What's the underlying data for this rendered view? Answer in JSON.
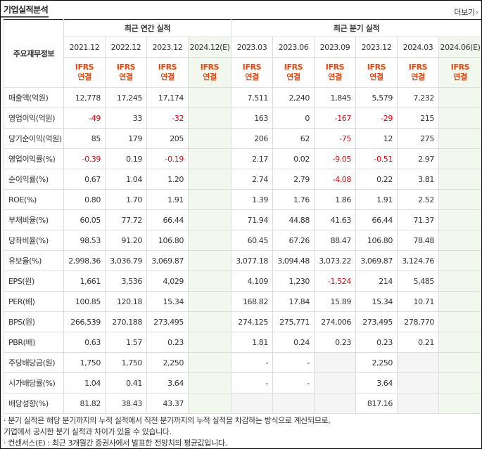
{
  "header": {
    "title": "기업실적분석",
    "more_label": "더보기"
  },
  "table": {
    "rowhead_label": "주요재무정보",
    "group_annual": "최근 연간 실적",
    "group_quarter": "최근 분기 실적",
    "periods": [
      "2021.12",
      "2022.12",
      "2023.12",
      "2024.12(E)",
      "2023.03",
      "2023.06",
      "2023.09",
      "2023.12",
      "2024.03",
      "2024.06(E)"
    ],
    "ifrs": "IFRS",
    "basis": "연결",
    "rows": [
      {
        "label": "매출액(억원)",
        "values": [
          "12,778",
          "17,245",
          "17,174",
          "",
          "7,511",
          "2,240",
          "1,845",
          "5,579",
          "7,232",
          ""
        ]
      },
      {
        "label": "영업이익(억원)",
        "values": [
          "-49",
          "33",
          "-32",
          "",
          "163",
          "0",
          "-167",
          "-29",
          "215",
          ""
        ]
      },
      {
        "label": "당기순이익(억원)",
        "values": [
          "85",
          "179",
          "205",
          "",
          "206",
          "62",
          "-75",
          "12",
          "275",
          ""
        ]
      },
      {
        "label": "영업이익률(%)",
        "values": [
          "-0.39",
          "0.19",
          "-0.19",
          "",
          "2.17",
          "0.02",
          "-9.05",
          "-0.51",
          "2.97",
          ""
        ]
      },
      {
        "label": "순이익률(%)",
        "values": [
          "0.67",
          "1.04",
          "1.20",
          "",
          "2.74",
          "2.79",
          "-4.08",
          "0.22",
          "3.81",
          ""
        ]
      },
      {
        "label": "ROE(%)",
        "values": [
          "0.80",
          "1.70",
          "1.91",
          "",
          "1.39",
          "1.76",
          "1.86",
          "1.91",
          "2.52",
          ""
        ]
      },
      {
        "label": "부채비율(%)",
        "values": [
          "60.05",
          "77.72",
          "66.44",
          "",
          "71.94",
          "44.88",
          "41.63",
          "66.44",
          "71.37",
          ""
        ]
      },
      {
        "label": "당좌비율(%)",
        "values": [
          "98.53",
          "91.20",
          "106.80",
          "",
          "60.45",
          "67.26",
          "88.47",
          "106.80",
          "78.48",
          ""
        ]
      },
      {
        "label": "유보율(%)",
        "values": [
          "2,998.36",
          "3,036.79",
          "3,069.87",
          "",
          "3,077.18",
          "3,094.48",
          "3,073.22",
          "3,069.87",
          "3,124.76",
          ""
        ]
      },
      {
        "label": "EPS(원)",
        "values": [
          "1,661",
          "3,536",
          "4,029",
          "",
          "4,109",
          "1,230",
          "-1,524",
          "214",
          "5,485",
          ""
        ]
      },
      {
        "label": "PER(배)",
        "values": [
          "100.85",
          "120.18",
          "15.34",
          "",
          "168.82",
          "17.84",
          "15.89",
          "15.34",
          "10.71",
          ""
        ]
      },
      {
        "label": "BPS(원)",
        "values": [
          "266,539",
          "270,188",
          "273,495",
          "",
          "274,125",
          "275,771",
          "274,006",
          "273,495",
          "278,770",
          ""
        ]
      },
      {
        "label": "PBR(배)",
        "values": [
          "0.63",
          "1.57",
          "0.23",
          "",
          "1.81",
          "0.24",
          "0.23",
          "0.23",
          "0.21",
          ""
        ]
      },
      {
        "label": "주당배당금(원)",
        "values": [
          "1,750",
          "1,750",
          "2,250",
          "",
          "-",
          "-",
          "",
          "2,250",
          "",
          ""
        ]
      },
      {
        "label": "시가배당률(%)",
        "values": [
          "1.04",
          "0.41",
          "3.64",
          "",
          "-",
          "-",
          "",
          "3.64",
          "",
          ""
        ]
      },
      {
        "label": "배당성향(%)",
        "values": [
          "81.82",
          "38.43",
          "43.37",
          "",
          "",
          "",
          "",
          "817.16",
          "",
          ""
        ]
      }
    ]
  },
  "notes": [
    "· 분기 실적은 해당 분기까지의 누적 실적에서 직전 분기까지의 누적 실적을 차감하는 방식으로 계산되므로,",
    "  기업에서 공시한 분기 실적과 차이가 있을 수 있습니다.",
    "· 컨센서스(E) : 최근 3개월간 증권사에서 발표한 전망치의 평균값입니다."
  ]
}
